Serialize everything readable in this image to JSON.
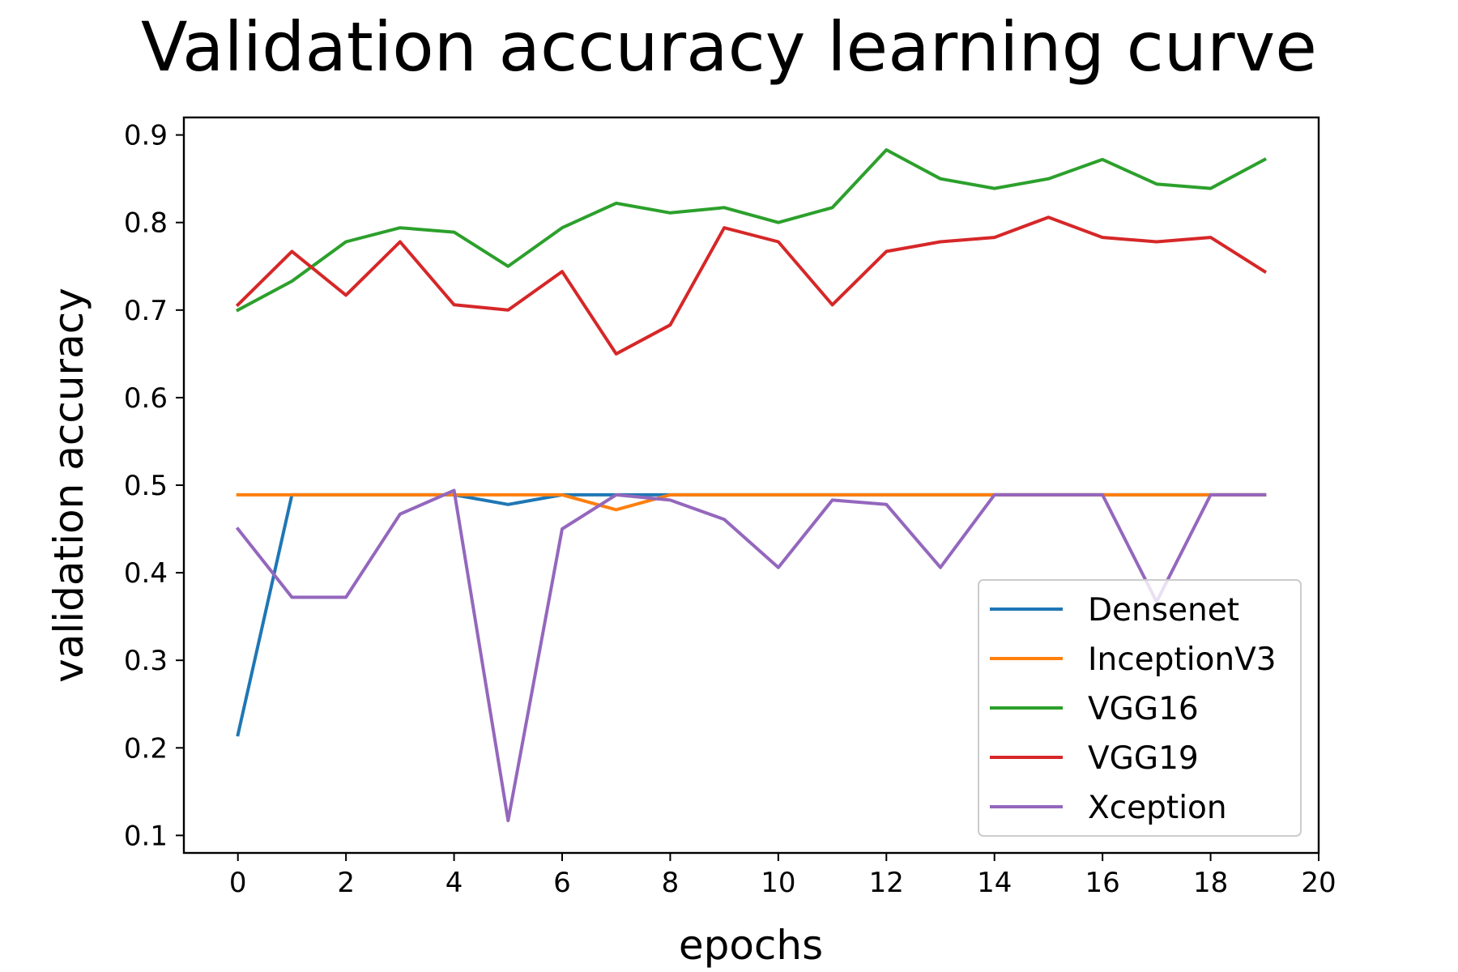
{
  "chart_data": {
    "type": "line",
    "title": "Validation accuracy learning curve",
    "xlabel": "epochs",
    "ylabel": "validation accuracy",
    "xlim": [
      -1,
      20
    ],
    "ylim": [
      0.08,
      0.92
    ],
    "xticks": [
      0,
      2,
      4,
      6,
      8,
      10,
      12,
      14,
      16,
      18,
      20
    ],
    "yticks": [
      0.1,
      0.2,
      0.3,
      0.4,
      0.5,
      0.6,
      0.7,
      0.8,
      0.9
    ],
    "grid": false,
    "legend_position": "lower-right",
    "x": [
      0,
      1,
      2,
      3,
      4,
      5,
      6,
      7,
      8,
      9,
      10,
      11,
      12,
      13,
      14,
      15,
      16,
      17,
      18,
      19
    ],
    "series": [
      {
        "name": "Densenet",
        "color": "#1f77b4",
        "values": [
          0.215,
          0.489,
          0.489,
          0.489,
          0.489,
          0.478,
          0.489,
          0.489,
          0.489,
          0.489,
          0.489,
          0.489,
          0.489,
          0.489,
          0.489,
          0.489,
          0.489,
          0.489,
          0.489,
          0.489
        ]
      },
      {
        "name": "InceptionV3",
        "color": "#ff7f0e",
        "values": [
          0.489,
          0.489,
          0.489,
          0.489,
          0.489,
          0.489,
          0.489,
          0.472,
          0.489,
          0.489,
          0.489,
          0.489,
          0.489,
          0.489,
          0.489,
          0.489,
          0.489,
          0.489,
          0.489,
          0.489
        ]
      },
      {
        "name": "VGG16",
        "color": "#2ca02c",
        "values": [
          0.7,
          0.733,
          0.778,
          0.794,
          0.789,
          0.75,
          0.794,
          0.822,
          0.811,
          0.817,
          0.8,
          0.817,
          0.883,
          0.85,
          0.839,
          0.85,
          0.872,
          0.844,
          0.839,
          0.872
        ]
      },
      {
        "name": "VGG19",
        "color": "#d62728",
        "values": [
          0.706,
          0.767,
          0.717,
          0.778,
          0.706,
          0.7,
          0.744,
          0.65,
          0.683,
          0.794,
          0.778,
          0.706,
          0.767,
          0.778,
          0.783,
          0.806,
          0.783,
          0.778,
          0.783,
          0.744
        ]
      },
      {
        "name": "Xception",
        "color": "#9467bd",
        "values": [
          0.45,
          0.372,
          0.372,
          0.467,
          0.494,
          0.117,
          0.45,
          0.489,
          0.483,
          0.461,
          0.406,
          0.483,
          0.478,
          0.406,
          0.489,
          0.489,
          0.489,
          0.367,
          0.489,
          0.489
        ]
      }
    ]
  }
}
